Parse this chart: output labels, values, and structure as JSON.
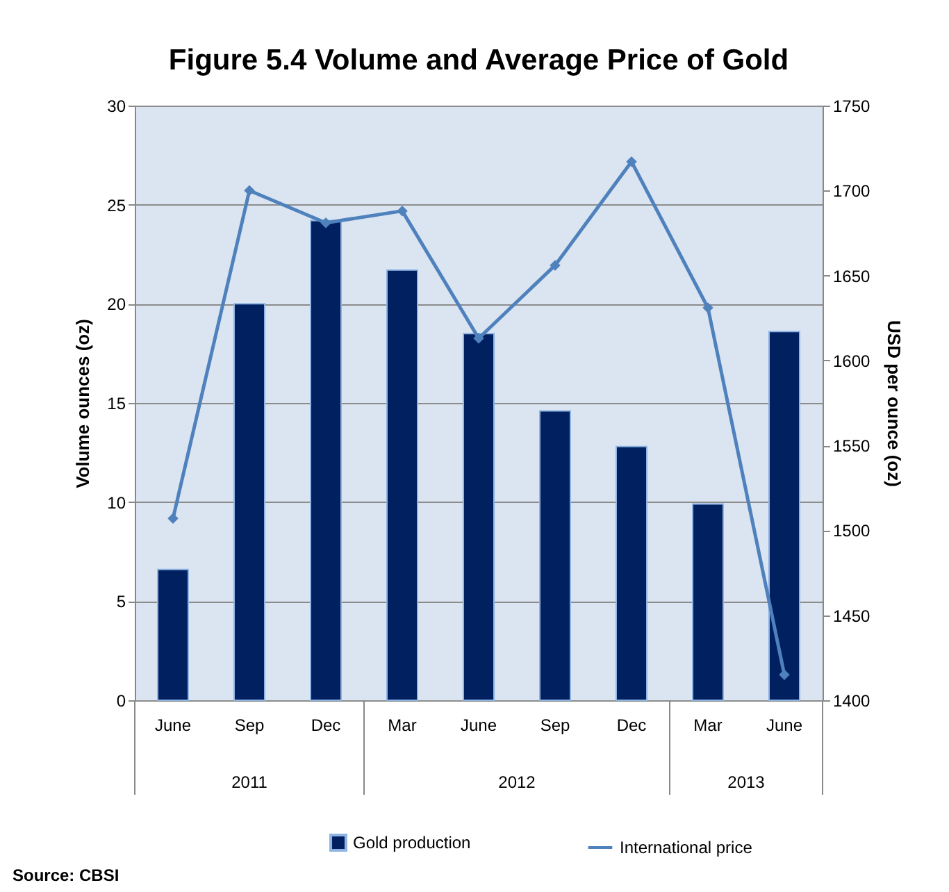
{
  "chart_data": {
    "type": "bar",
    "title": "Figure 5.4 Volume and Average Price of Gold",
    "categories": [
      "June",
      "Sep",
      "Dec",
      "Mar",
      "June",
      "Sep",
      "Dec",
      "Mar",
      "June"
    ],
    "ylabel": "Volume ounces (oz)",
    "y2label": "USD per ounce (oz)",
    "series": [
      {
        "name": "Gold production",
        "color": "#002060",
        "values": [
          6.6,
          20.0,
          24.2,
          21.7,
          18.5,
          14.6,
          12.8,
          9.9,
          18.6
        ]
      },
      {
        "name": "International price",
        "type": "line",
        "axis": "y2",
        "color": "#4f81bd",
        "marker": "diamond",
        "values": [
          1507,
          1700,
          1681,
          1688,
          1613,
          1656,
          1717,
          1631,
          1415
        ]
      }
    ],
    "ylim": [
      0,
      30
    ],
    "yticks": [
      0,
      5,
      10,
      15,
      20,
      25,
      30
    ],
    "y2lim": [
      1400,
      1750
    ],
    "y2ticks": [
      1400,
      1450,
      1500,
      1550,
      1600,
      1650,
      1700,
      1750
    ],
    "grid": "y",
    "legend": "bottom",
    "annotations": [
      "2011",
      "2012",
      "2013",
      "Source: CBSI"
    ]
  }
}
